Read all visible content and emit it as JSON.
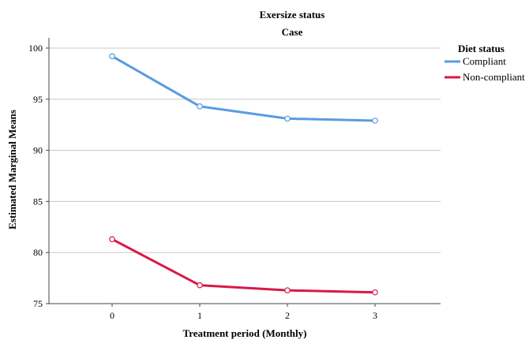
{
  "chart_data": {
    "type": "line",
    "title": "Exersize status",
    "subtitle": "Case",
    "xlabel": "Treatment period (Monthly)",
    "ylabel": "Estimated Marginal Means",
    "x": [
      "0",
      "1",
      "2",
      "3"
    ],
    "ylim": [
      75,
      101
    ],
    "yticks": [
      75,
      80,
      85,
      90,
      95,
      100
    ],
    "grid": "horizontal",
    "legend": {
      "title": "Diet status",
      "placement": "right"
    },
    "series": [
      {
        "name": "Compliant",
        "color": "#5a9be0",
        "values": [
          99.2,
          94.3,
          93.1,
          92.9
        ]
      },
      {
        "name": "Non-compliant",
        "color": "#d8184a",
        "values": [
          81.3,
          76.8,
          76.3,
          76.1
        ]
      }
    ]
  }
}
